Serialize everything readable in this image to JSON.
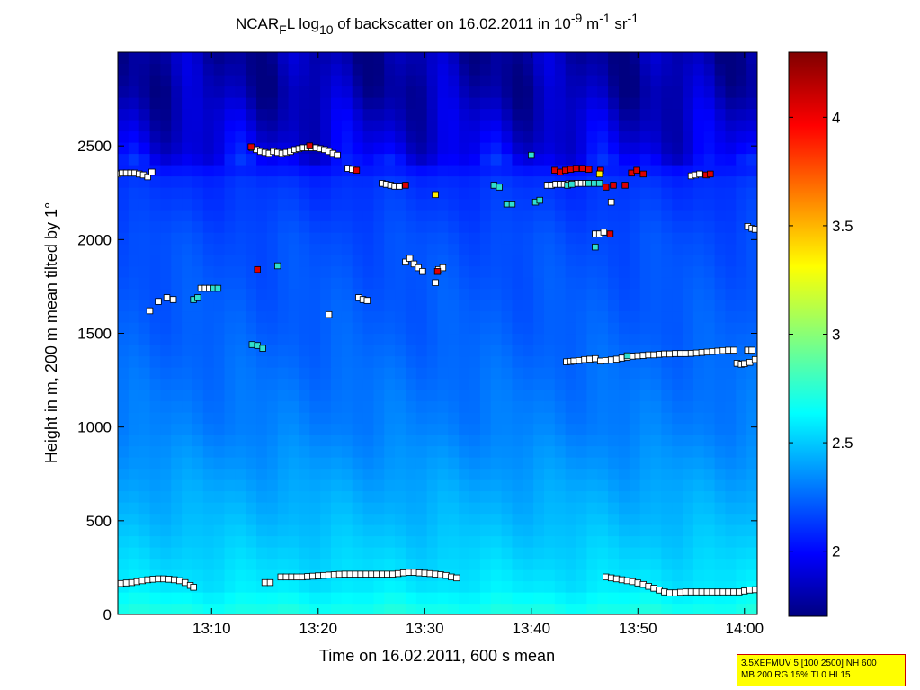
{
  "chart_data": {
    "type": "heatmap",
    "title": {
      "prefix": "NCAR",
      "sub1": "F",
      "mid1": "L log",
      "sub2": "10",
      "mid2": " of backscatter on 16.02.2011 in 10",
      "sup1": "-9",
      "mid3": " m",
      "sup2": "-1",
      "mid4": " sr",
      "sup3": "-1"
    },
    "xlabel": "Time on 16.02.2011, 600 s mean",
    "ylabel": "Height in m, 200 m mean tilted by 1°",
    "xlim_minutes": [
      781.2,
      841.2
    ],
    "ylim": [
      0,
      3000
    ],
    "xticks": [
      {
        "minutes": 790,
        "label": "13:10"
      },
      {
        "minutes": 800,
        "label": "13:20"
      },
      {
        "minutes": 810,
        "label": "13:30"
      },
      {
        "minutes": 820,
        "label": "13:40"
      },
      {
        "minutes": 830,
        "label": "13:50"
      },
      {
        "minutes": 840,
        "label": "14:00"
      }
    ],
    "yticks": [
      0,
      500,
      1000,
      1500,
      2000,
      2500
    ],
    "colorbar": {
      "range": [
        1.7,
        4.3
      ],
      "ticks": [
        2,
        2.5,
        3,
        3.5,
        4
      ],
      "tick_labels": [
        "2",
        "2.5",
        "3",
        "3.5",
        "4"
      ],
      "colormap": "jet"
    },
    "background_field": {
      "description": "log10 backscatter, decreasing with height",
      "profile": [
        {
          "height": 0,
          "value": 2.75
        },
        {
          "height": 150,
          "value": 2.62
        },
        {
          "height": 500,
          "value": 2.5
        },
        {
          "height": 1000,
          "value": 2.35
        },
        {
          "height": 1500,
          "value": 2.27
        },
        {
          "height": 2000,
          "value": 2.22
        },
        {
          "height": 2300,
          "value": 2.15
        },
        {
          "height": 2500,
          "value": 1.95
        },
        {
          "height": 2800,
          "value": 1.82
        },
        {
          "height": 3000,
          "value": 1.8
        }
      ]
    },
    "markers": [
      {
        "name": "low-layer-1",
        "color": "white",
        "points": [
          [
            781.5,
            165
          ],
          [
            782,
            168
          ],
          [
            782.5,
            170
          ],
          [
            783,
            175
          ],
          [
            783.5,
            180
          ],
          [
            784,
            185
          ],
          [
            784.5,
            188
          ],
          [
            785,
            190
          ],
          [
            785.5,
            190
          ],
          [
            786,
            188
          ],
          [
            786.5,
            185
          ],
          [
            787,
            180
          ],
          [
            787.5,
            170
          ],
          [
            788,
            155
          ],
          [
            788.3,
            145
          ]
        ]
      },
      {
        "name": "low-layer-2",
        "color": "white",
        "points": [
          [
            795,
            170
          ],
          [
            795.5,
            170
          ]
        ]
      },
      {
        "name": "low-layer-3",
        "color": "white",
        "points": [
          [
            796.5,
            200
          ],
          [
            797,
            200
          ],
          [
            797.5,
            200
          ],
          [
            798,
            200
          ],
          [
            798.5,
            200
          ],
          [
            799,
            202
          ],
          [
            799.5,
            204
          ],
          [
            800,
            206
          ],
          [
            800.5,
            208
          ],
          [
            801,
            210
          ],
          [
            801.5,
            212
          ],
          [
            802,
            214
          ],
          [
            802.5,
            215
          ],
          [
            803,
            215
          ],
          [
            803.5,
            215
          ],
          [
            804,
            215
          ],
          [
            804.5,
            215
          ],
          [
            805,
            215
          ],
          [
            805.5,
            215
          ],
          [
            806,
            215
          ],
          [
            806.5,
            215
          ],
          [
            807,
            215
          ],
          [
            807.5,
            218
          ],
          [
            808,
            222
          ],
          [
            808.5,
            225
          ],
          [
            809,
            225
          ],
          [
            809.5,
            222
          ],
          [
            810,
            220
          ],
          [
            810.5,
            218
          ],
          [
            811,
            215
          ],
          [
            811.5,
            212
          ],
          [
            812,
            208
          ],
          [
            812.5,
            200
          ],
          [
            813,
            195
          ]
        ]
      },
      {
        "name": "low-layer-4",
        "color": "white",
        "points": [
          [
            827,
            200
          ],
          [
            827.5,
            195
          ],
          [
            828,
            190
          ],
          [
            828.5,
            185
          ],
          [
            829,
            180
          ],
          [
            829.5,
            175
          ],
          [
            830,
            168
          ],
          [
            830.5,
            160
          ],
          [
            831,
            150
          ],
          [
            831.5,
            140
          ],
          [
            832,
            130
          ],
          [
            832.5,
            120
          ],
          [
            833,
            115
          ],
          [
            833.5,
            115
          ],
          [
            834,
            118
          ],
          [
            834.5,
            120
          ],
          [
            835,
            120
          ],
          [
            835.5,
            120
          ],
          [
            836,
            120
          ],
          [
            836.5,
            120
          ],
          [
            837,
            120
          ],
          [
            837.5,
            120
          ],
          [
            838,
            120
          ],
          [
            838.5,
            120
          ],
          [
            839,
            120
          ],
          [
            839.5,
            120
          ],
          [
            840,
            125
          ],
          [
            840.5,
            130
          ],
          [
            841,
            132
          ]
        ]
      },
      {
        "name": "mid-layer-1",
        "color": "white",
        "points": [
          [
            823.3,
            1348
          ],
          [
            823.7,
            1350
          ],
          [
            824,
            1352
          ],
          [
            824.5,
            1355
          ],
          [
            825,
            1360
          ],
          [
            825.5,
            1362
          ],
          [
            826,
            1365
          ],
          [
            826.5,
            1352
          ],
          [
            827,
            1355
          ],
          [
            827.5,
            1358
          ],
          [
            828,
            1362
          ],
          [
            828.5,
            1368
          ],
          [
            829,
            1372
          ],
          [
            829.5,
            1378
          ],
          [
            830,
            1380
          ],
          [
            830.5,
            1382
          ],
          [
            831,
            1385
          ],
          [
            831.5,
            1385
          ],
          [
            832,
            1388
          ],
          [
            832.5,
            1390
          ],
          [
            833,
            1390
          ],
          [
            833.5,
            1392
          ],
          [
            834,
            1392
          ],
          [
            834.5,
            1392
          ],
          [
            835,
            1393
          ],
          [
            835.5,
            1395
          ],
          [
            836,
            1398
          ],
          [
            836.5,
            1400
          ],
          [
            837,
            1403
          ],
          [
            837.5,
            1405
          ],
          [
            838,
            1408
          ],
          [
            838.5,
            1410
          ],
          [
            839,
            1410
          ],
          [
            839.3,
            1340
          ],
          [
            839.7,
            1335
          ],
          [
            840,
            1338
          ],
          [
            840.5,
            1345
          ],
          [
            841,
            1360
          ],
          [
            840.3,
            1410
          ],
          [
            840.7,
            1410
          ]
        ]
      },
      {
        "name": "mid-layer-2",
        "color": "white",
        "points": [
          [
            784.2,
            1620
          ],
          [
            785,
            1670
          ],
          [
            785.8,
            1690
          ],
          [
            786.4,
            1680
          ],
          [
            789,
            1740
          ],
          [
            789.4,
            1740
          ],
          [
            789.8,
            1740
          ]
        ]
      },
      {
        "name": "mid-layer-3",
        "color": "white",
        "points": [
          [
            801,
            1600
          ],
          [
            803.8,
            1690
          ],
          [
            804.2,
            1680
          ],
          [
            804.6,
            1675
          ],
          [
            808.2,
            1880
          ],
          [
            808.6,
            1900
          ],
          [
            809,
            1870
          ],
          [
            809.4,
            1850
          ],
          [
            809.8,
            1830
          ],
          [
            811,
            1770
          ],
          [
            811.3,
            1840
          ],
          [
            811.7,
            1850
          ]
        ]
      },
      {
        "name": "mid-layer-4",
        "color": "white",
        "points": [
          [
            826,
            2030
          ],
          [
            826.4,
            2030
          ],
          [
            826.8,
            2040
          ],
          [
            827.5,
            2200
          ],
          [
            840.3,
            2070
          ],
          [
            840.7,
            2060
          ],
          [
            841,
            2055
          ]
        ]
      },
      {
        "name": "upper-layer-1",
        "color": "white",
        "points": [
          [
            781.2,
            2350
          ],
          [
            781.6,
            2355
          ],
          [
            782,
            2355
          ],
          [
            782.4,
            2355
          ],
          [
            782.8,
            2355
          ],
          [
            783.2,
            2350
          ],
          [
            783.6,
            2345
          ],
          [
            784,
            2335
          ],
          [
            784.4,
            2360
          ]
        ]
      },
      {
        "name": "upper-layer-2",
        "color": "white",
        "points": [
          [
            793.8,
            2490
          ],
          [
            794.2,
            2480
          ],
          [
            794.6,
            2470
          ],
          [
            795,
            2465
          ],
          [
            795.4,
            2460
          ],
          [
            795.8,
            2470
          ],
          [
            796.2,
            2465
          ],
          [
            796.6,
            2460
          ],
          [
            797,
            2465
          ],
          [
            797.4,
            2470
          ],
          [
            797.8,
            2480
          ],
          [
            798.2,
            2485
          ],
          [
            798.6,
            2490
          ],
          [
            799,
            2490
          ],
          [
            799.4,
            2490
          ],
          [
            799.8,
            2490
          ],
          [
            800.2,
            2485
          ],
          [
            800.6,
            2480
          ],
          [
            801,
            2470
          ],
          [
            801.4,
            2460
          ],
          [
            801.8,
            2450
          ],
          [
            802.8,
            2380
          ],
          [
            803.2,
            2375
          ],
          [
            806,
            2300
          ],
          [
            806.4,
            2295
          ],
          [
            806.8,
            2290
          ],
          [
            807.2,
            2285
          ],
          [
            807.6,
            2285
          ]
        ]
      },
      {
        "name": "upper-layer-3",
        "color": "white",
        "points": [
          [
            821.5,
            2290
          ],
          [
            821.9,
            2290
          ],
          [
            822.3,
            2295
          ],
          [
            822.7,
            2295
          ],
          [
            823.1,
            2295
          ],
          [
            823.5,
            2298
          ],
          [
            823.9,
            2300
          ],
          [
            824.3,
            2300
          ],
          [
            824.7,
            2300
          ],
          [
            825.1,
            2300
          ],
          [
            835,
            2340
          ],
          [
            835.4,
            2345
          ],
          [
            835.8,
            2350
          ]
        ]
      },
      {
        "name": "red-points",
        "color": "#dd0000",
        "points": [
          [
            793.7,
            2495
          ],
          [
            794.3,
            1840
          ],
          [
            799.2,
            2500
          ],
          [
            803.6,
            2370
          ],
          [
            808.2,
            2290
          ],
          [
            811.2,
            1830
          ],
          [
            822.2,
            2370
          ],
          [
            822.7,
            2360
          ],
          [
            823.2,
            2370
          ],
          [
            823.7,
            2375
          ],
          [
            824.2,
            2380
          ],
          [
            824.8,
            2380
          ],
          [
            825.4,
            2375
          ],
          [
            826.5,
            2370
          ],
          [
            827,
            2280
          ],
          [
            827.7,
            2290
          ],
          [
            828.8,
            2290
          ],
          [
            829.4,
            2355
          ],
          [
            829.9,
            2370
          ],
          [
            830.5,
            2350
          ],
          [
            827.4,
            2030
          ],
          [
            836.4,
            2345
          ],
          [
            836.8,
            2350
          ]
        ]
      },
      {
        "name": "cyan-points",
        "color": "#30e0d0",
        "points": [
          [
            793.8,
            1440
          ],
          [
            794.3,
            1435
          ],
          [
            794.8,
            1420
          ],
          [
            796.2,
            1860
          ],
          [
            788.3,
            1680
          ],
          [
            788.7,
            1690
          ],
          [
            790.2,
            1740
          ],
          [
            790.6,
            1740
          ],
          [
            816.5,
            2290
          ],
          [
            817,
            2280
          ],
          [
            817.7,
            2190
          ],
          [
            818.2,
            2190
          ],
          [
            820,
            2450
          ],
          [
            820.4,
            2200
          ],
          [
            820.8,
            2210
          ],
          [
            823.4,
            2290
          ],
          [
            823.8,
            2295
          ],
          [
            825.4,
            2300
          ],
          [
            825.9,
            2300
          ],
          [
            826.4,
            2300
          ],
          [
            826,
            1960
          ],
          [
            829,
            1380
          ]
        ]
      },
      {
        "name": "yellow-points",
        "color": "#ffee00",
        "points": [
          [
            811,
            2240
          ],
          [
            826.4,
            2350
          ]
        ]
      }
    ]
  },
  "info_box": {
    "line1": "3.5XEFMUV 5 [100 2500] NH 600",
    "line2": "MB 200 RG 15% TI 0 HI 15"
  }
}
